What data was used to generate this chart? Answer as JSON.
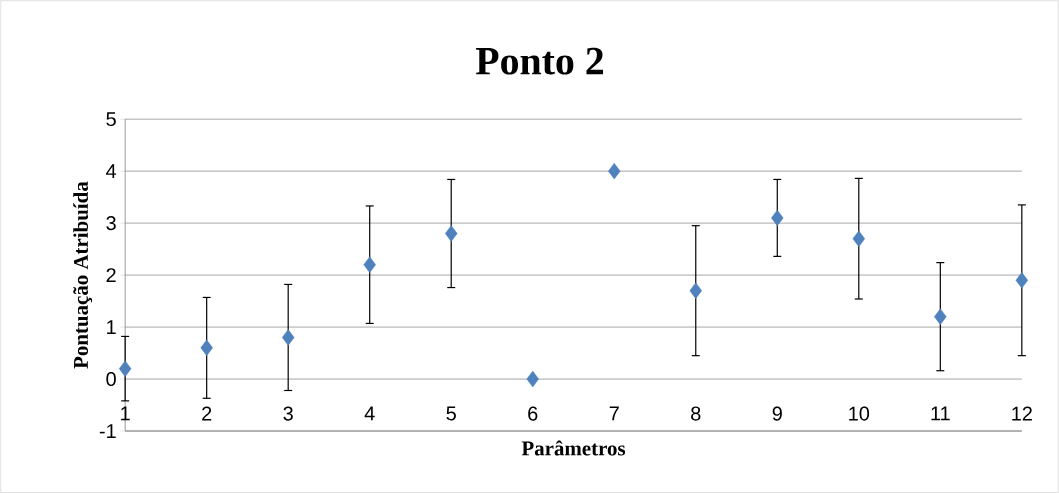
{
  "chart_data": {
    "type": "scatter",
    "title": "Ponto 2",
    "xlabel": "Parâmetros",
    "ylabel": "Pontuação Atribuída",
    "x": [
      1,
      2,
      3,
      4,
      5,
      6,
      7,
      8,
      9,
      10,
      11,
      12
    ],
    "series": [
      {
        "color": "#4f81bd",
        "values": [
          0.2,
          0.6,
          0.8,
          2.2,
          2.8,
          0,
          4,
          1.7,
          3.1,
          2.7,
          1.2,
          1.9
        ],
        "errors": [
          0.62,
          0.97,
          1.02,
          1.13,
          1.04,
          null,
          null,
          1.25,
          0.74,
          1.16,
          1.04,
          1.45
        ]
      }
    ],
    "xlim": [
      1,
      12
    ],
    "xticks": [
      1,
      2,
      3,
      4,
      5,
      6,
      7,
      8,
      9,
      10,
      11,
      12
    ],
    "ylim": [
      -1,
      5
    ],
    "yticks": [
      -1,
      0,
      1,
      2,
      3,
      4,
      5
    ],
    "grid": "y",
    "marker": "diamond"
  }
}
